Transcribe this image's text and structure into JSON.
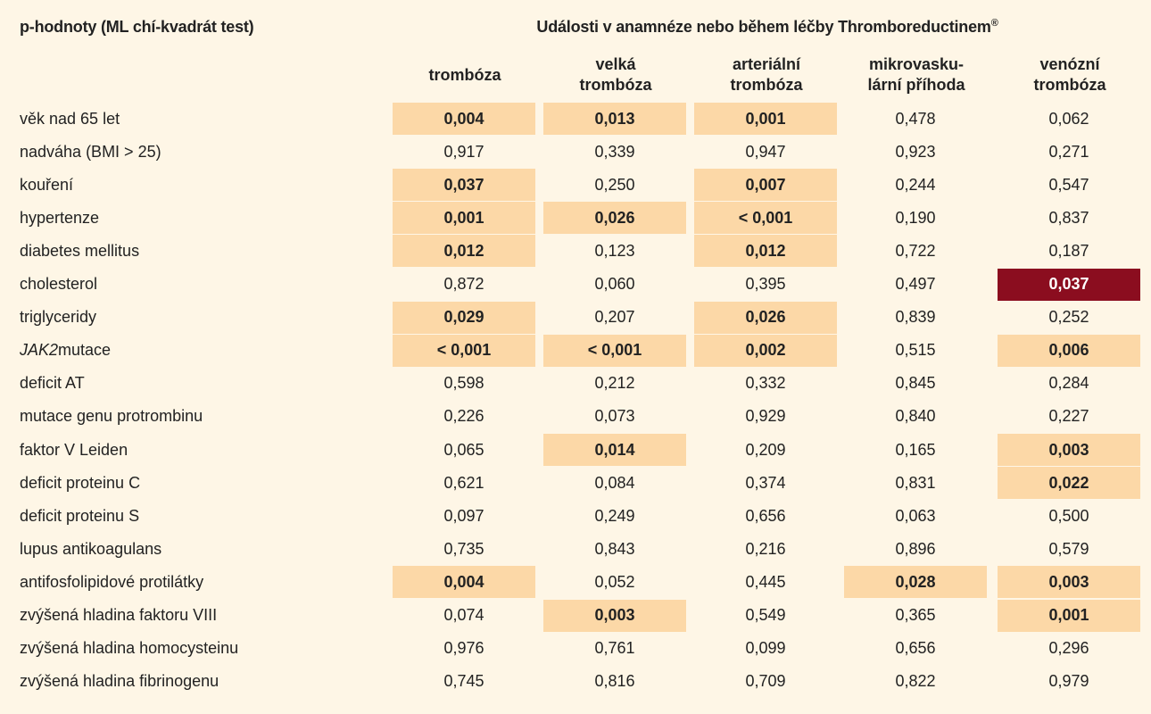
{
  "header": {
    "row_label_title": "p-hodnoty (ML chí-kvadrát test)",
    "group_title": "Události v anamnéze nebo během léčby Thromboreductinem",
    "group_title_mark": "®"
  },
  "columns": [
    {
      "label": "trombóza"
    },
    {
      "label": "velká\ntrombóza"
    },
    {
      "label": "arteriální\ntrombóza"
    },
    {
      "label": "mikrovasku-\nlární příhoda"
    },
    {
      "label": "venózní\ntrombóza"
    }
  ],
  "colors": {
    "background": "#fef6e6",
    "highlight": "#fcd8a7",
    "strong_highlight": "#8b0d1f"
  },
  "rows": [
    {
      "label": "věk nad 65 let",
      "values": [
        "0,004",
        "0,013",
        "0,001",
        "0,478",
        "0,062"
      ],
      "hl": [
        1,
        1,
        1,
        0,
        0
      ]
    },
    {
      "label": "nadváha (BMI > 25)",
      "values": [
        "0,917",
        "0,339",
        "0,947",
        "0,923",
        "0,271"
      ],
      "hl": [
        0,
        0,
        0,
        0,
        0
      ]
    },
    {
      "label": "kouření",
      "values": [
        "0,037",
        "0,250",
        "0,007",
        "0,244",
        "0,547"
      ],
      "hl": [
        1,
        0,
        1,
        0,
        0
      ]
    },
    {
      "label": "hypertenze",
      "values": [
        "0,001",
        "0,026",
        "< 0,001",
        "0,190",
        "0,837"
      ],
      "hl": [
        1,
        1,
        1,
        0,
        0
      ]
    },
    {
      "label": "diabetes mellitus",
      "values": [
        "0,012",
        "0,123",
        "0,012",
        "0,722",
        "0,187"
      ],
      "hl": [
        1,
        0,
        1,
        0,
        0
      ]
    },
    {
      "label": "cholesterol",
      "values": [
        "0,872",
        "0,060",
        "0,395",
        "0,497",
        "0,037"
      ],
      "hl": [
        0,
        0,
        0,
        0,
        2
      ]
    },
    {
      "label": "triglyceridy",
      "values": [
        "0,029",
        "0,207",
        "0,026",
        "0,839",
        "0,252"
      ],
      "hl": [
        1,
        0,
        1,
        0,
        0
      ]
    },
    {
      "label": "mutace",
      "label_italic": "JAK2",
      "values": [
        "< 0,001",
        "< 0,001",
        "0,002",
        "0,515",
        "0,006"
      ],
      "hl": [
        1,
        1,
        1,
        0,
        1
      ]
    },
    {
      "label": "deficit AT",
      "values": [
        "0,598",
        "0,212",
        "0,332",
        "0,845",
        "0,284"
      ],
      "hl": [
        0,
        0,
        0,
        0,
        0
      ]
    },
    {
      "label": "mutace genu protrombinu",
      "values": [
        "0,226",
        "0,073",
        "0,929",
        "0,840",
        "0,227"
      ],
      "hl": [
        0,
        0,
        0,
        0,
        0
      ]
    },
    {
      "label": "faktor V Leiden",
      "values": [
        "0,065",
        "0,014",
        "0,209",
        "0,165",
        "0,003"
      ],
      "hl": [
        0,
        1,
        0,
        0,
        1
      ]
    },
    {
      "label": "deficit proteinu C",
      "values": [
        "0,621",
        "0,084",
        "0,374",
        "0,831",
        "0,022"
      ],
      "hl": [
        0,
        0,
        0,
        0,
        1
      ]
    },
    {
      "label": "deficit proteinu S",
      "values": [
        "0,097",
        "0,249",
        "0,656",
        "0,063",
        "0,500"
      ],
      "hl": [
        0,
        0,
        0,
        0,
        0
      ]
    },
    {
      "label": "lupus antikoagulans",
      "values": [
        "0,735",
        "0,843",
        "0,216",
        "0,896",
        "0,579"
      ],
      "hl": [
        0,
        0,
        0,
        0,
        0
      ]
    },
    {
      "label": "antifosfolipidové protilátky",
      "values": [
        "0,004",
        "0,052",
        "0,445",
        "0,028",
        "0,003"
      ],
      "hl": [
        1,
        0,
        0,
        1,
        1
      ]
    },
    {
      "label": "zvýšená hladina faktoru VIII",
      "values": [
        "0,074",
        "0,003",
        "0,549",
        "0,365",
        "0,001"
      ],
      "hl": [
        0,
        1,
        0,
        0,
        1
      ]
    },
    {
      "label": "zvýšená hladina homocysteinu",
      "values": [
        "0,976",
        "0,761",
        "0,099",
        "0,656",
        "0,296"
      ],
      "hl": [
        0,
        0,
        0,
        0,
        0
      ]
    },
    {
      "label": "zvýšená hladina fibrinogenu",
      "values": [
        "0,745",
        "0,816",
        "0,709",
        "0,822",
        "0,979"
      ],
      "hl": [
        0,
        0,
        0,
        0,
        0
      ]
    }
  ]
}
